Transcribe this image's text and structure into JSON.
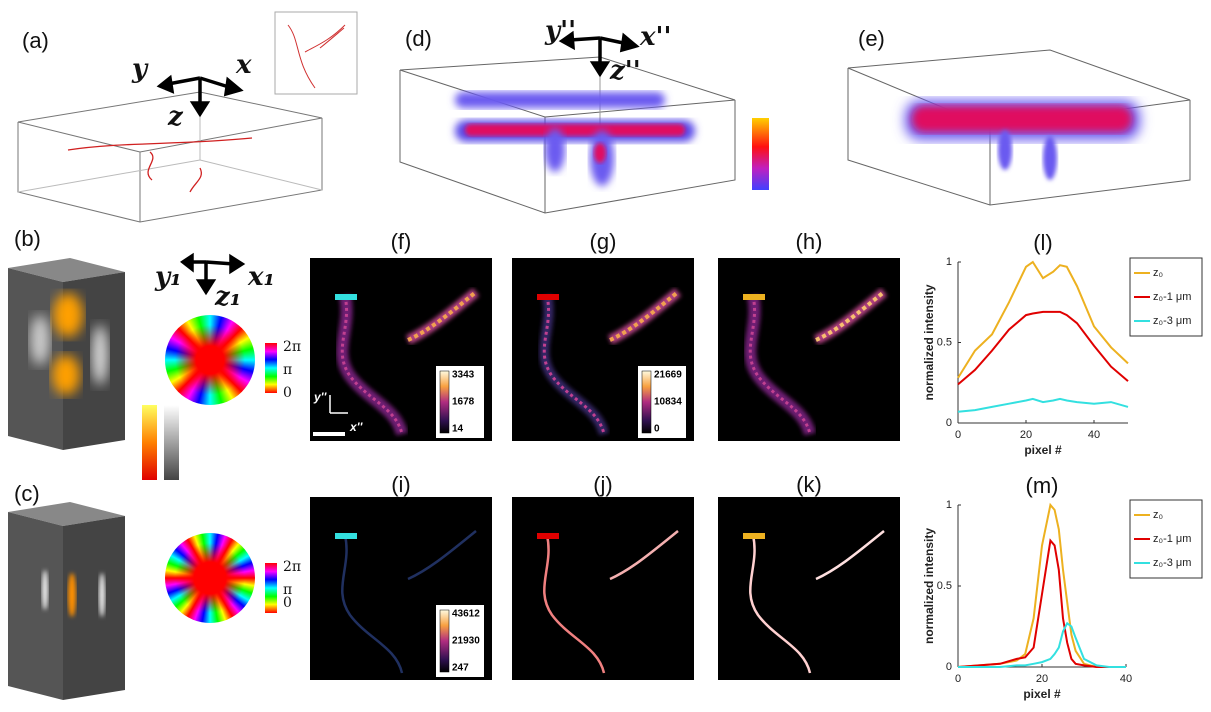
{
  "panel_labels": [
    "(a)",
    "(b)",
    "(c)",
    "(d)",
    "(e)",
    "(f)",
    "(g)",
    "(h)",
    "(i)",
    "(j)",
    "(k)"
  ],
  "axes": {
    "a": {
      "x": "x",
      "y": "y",
      "z": "z"
    },
    "d": {
      "x": "x''",
      "y": "y''",
      "z": "z''"
    },
    "b": {
      "x": "x₁",
      "y": "y₁",
      "z": "z₁"
    },
    "f_inset": {
      "x": "x''",
      "y": "y''"
    }
  },
  "phase_colorbar": {
    "max": "2π",
    "mid": "π",
    "min": 0
  },
  "colorbars": {
    "f": [
      3343,
      1678,
      14
    ],
    "g": [
      21669,
      10834,
      0
    ],
    "i": [
      43612,
      21930,
      247
    ]
  },
  "chart_data": [
    {
      "type": "line",
      "title": "(l)",
      "xlabel": "pixel #",
      "ylabel": "normalized intensity",
      "x": [
        0,
        5,
        10,
        15,
        20,
        22,
        25,
        28,
        30,
        32,
        35,
        40,
        45,
        50
      ],
      "xlim": [
        0,
        50
      ],
      "ylim": [
        0,
        1
      ],
      "xticks": [
        0,
        20,
        40
      ],
      "yticks": [
        0,
        0.5,
        1
      ],
      "legend": "right",
      "series": [
        {
          "name": "z₀",
          "color": "#edb120",
          "values": [
            0.28,
            0.45,
            0.55,
            0.75,
            0.97,
            1.0,
            0.9,
            0.94,
            0.98,
            0.97,
            0.85,
            0.6,
            0.47,
            0.37
          ]
        },
        {
          "name": "z₀-1 μm",
          "color": "#e00000",
          "values": [
            0.24,
            0.33,
            0.45,
            0.58,
            0.67,
            0.68,
            0.69,
            0.69,
            0.69,
            0.67,
            0.62,
            0.48,
            0.35,
            0.26
          ]
        },
        {
          "name": "z₀-3 μm",
          "color": "#33e0e0",
          "values": [
            0.07,
            0.08,
            0.1,
            0.12,
            0.14,
            0.15,
            0.13,
            0.14,
            0.15,
            0.14,
            0.13,
            0.12,
            0.13,
            0.1
          ]
        }
      ]
    },
    {
      "type": "line",
      "title": "(m)",
      "xlabel": "pixel #",
      "ylabel": "normalized intensity",
      "x": [
        0,
        5,
        10,
        14,
        16,
        18,
        20,
        22,
        23,
        24,
        25,
        26,
        27,
        28,
        30,
        33,
        36,
        40
      ],
      "xlim": [
        0,
        40
      ],
      "ylim": [
        0,
        1
      ],
      "xticks": [
        0,
        20,
        40
      ],
      "yticks": [
        0,
        0.5,
        1
      ],
      "legend": "right",
      "series": [
        {
          "name": "z₀",
          "color": "#edb120",
          "values": [
            0,
            0.01,
            0.02,
            0.04,
            0.08,
            0.3,
            0.75,
            1.0,
            0.97,
            0.85,
            0.6,
            0.4,
            0.2,
            0.1,
            0.02,
            0,
            0,
            0
          ]
        },
        {
          "name": "z₀-1 μm",
          "color": "#e00000",
          "values": [
            0,
            0.01,
            0.02,
            0.05,
            0.06,
            0.12,
            0.45,
            0.78,
            0.75,
            0.6,
            0.3,
            0.15,
            0.05,
            0.02,
            0.01,
            0,
            0,
            0
          ]
        },
        {
          "name": "z₀-3 μm",
          "color": "#33e0e0",
          "values": [
            0,
            0,
            0,
            0.01,
            0.01,
            0.02,
            0.03,
            0.05,
            0.08,
            0.12,
            0.22,
            0.27,
            0.25,
            0.18,
            0.05,
            0.01,
            0,
            0
          ]
        }
      ]
    }
  ]
}
